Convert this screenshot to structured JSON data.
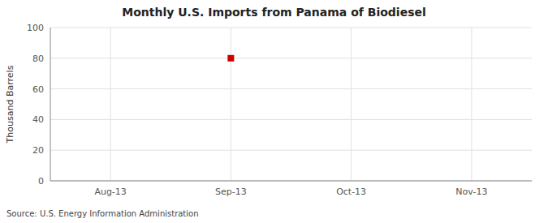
{
  "chart_data": {
    "type": "line",
    "title": "Monthly U.S. Imports from Panama of Biodiesel",
    "y_label": "Thousand Barrels",
    "source": "Source: U.S. Energy Information Administration",
    "categories": [
      "Aug-13",
      "Sep-13",
      "Oct-13",
      "Nov-13"
    ],
    "values": [
      null,
      80,
      null,
      null
    ],
    "color": "#cc0000",
    "marker": "square",
    "line_style": "none",
    "ylim": [
      0,
      100
    ],
    "yticks": [
      0,
      20,
      40,
      60,
      80,
      100
    ],
    "grid": true
  }
}
